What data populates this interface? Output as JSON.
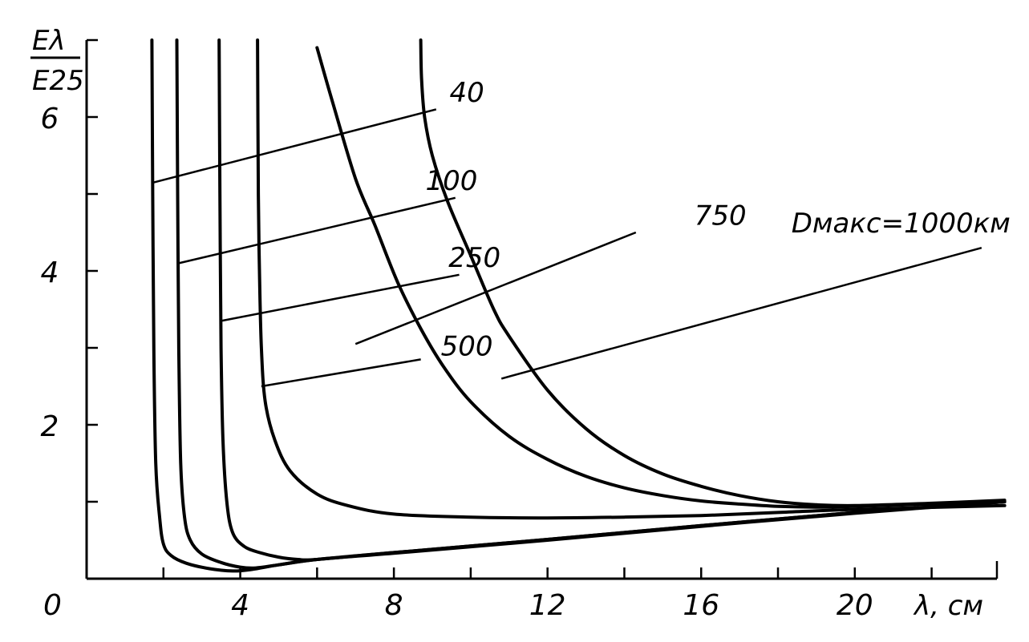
{
  "chart_data": {
    "type": "line",
    "title": "",
    "xlabel": "λ, см",
    "ylabel": {
      "numerator": "Eλ",
      "denominator": "E25"
    },
    "origin_label": "0",
    "xlim": [
      0,
      23.7
    ],
    "ylim": [
      0,
      7
    ],
    "x_ticks": [
      4,
      8,
      12,
      16,
      20
    ],
    "x_minor_ticks": [
      2,
      6,
      10,
      14,
      18,
      22
    ],
    "y_ticks": [
      2,
      4,
      6
    ],
    "y_minor_ticks": [
      1,
      3,
      5,
      7
    ],
    "grid": false,
    "legend": "none",
    "series": [
      {
        "name": "40",
        "label_text": "40",
        "points": [
          [
            1.7,
            7.0
          ],
          [
            1.72,
            5.0
          ],
          [
            1.75,
            3.0
          ],
          [
            1.8,
            1.5
          ],
          [
            1.9,
            0.8
          ],
          [
            2.0,
            0.45
          ],
          [
            2.2,
            0.3
          ],
          [
            2.6,
            0.2
          ],
          [
            3.2,
            0.13
          ],
          [
            3.8,
            0.1
          ],
          [
            4.3,
            0.12
          ],
          [
            5.0,
            0.18
          ],
          [
            6.0,
            0.25
          ],
          [
            8.0,
            0.33
          ],
          [
            12.0,
            0.5
          ],
          [
            16.0,
            0.68
          ],
          [
            20.0,
            0.85
          ],
          [
            23.9,
            1.0
          ]
        ]
      },
      {
        "name": "100",
        "label_text": "100",
        "points": [
          [
            2.35,
            7.0
          ],
          [
            2.37,
            5.0
          ],
          [
            2.4,
            3.0
          ],
          [
            2.45,
            1.5
          ],
          [
            2.55,
            0.8
          ],
          [
            2.7,
            0.5
          ],
          [
            3.0,
            0.32
          ],
          [
            3.5,
            0.21
          ],
          [
            4.0,
            0.15
          ],
          [
            4.4,
            0.14
          ],
          [
            5.0,
            0.18
          ],
          [
            6.0,
            0.25
          ],
          [
            8.0,
            0.34
          ],
          [
            12.0,
            0.51
          ],
          [
            16.0,
            0.69
          ],
          [
            20.0,
            0.86
          ],
          [
            23.9,
            1.0
          ]
        ]
      },
      {
        "name": "250",
        "label_text": "250",
        "points": [
          [
            3.45,
            7.0
          ],
          [
            3.47,
            5.0
          ],
          [
            3.5,
            3.0
          ],
          [
            3.55,
            1.8
          ],
          [
            3.65,
            1.0
          ],
          [
            3.8,
            0.6
          ],
          [
            4.1,
            0.42
          ],
          [
            4.5,
            0.34
          ],
          [
            5.0,
            0.28
          ],
          [
            5.5,
            0.25
          ],
          [
            6.0,
            0.25
          ],
          [
            8.0,
            0.34
          ],
          [
            12.0,
            0.51
          ],
          [
            16.0,
            0.69
          ],
          [
            20.0,
            0.86
          ],
          [
            23.9,
            1.0
          ]
        ]
      },
      {
        "name": "500",
        "label_text": "500",
        "points": [
          [
            4.45,
            7.0
          ],
          [
            4.47,
            5.0
          ],
          [
            4.5,
            4.0
          ],
          [
            4.55,
            3.0
          ],
          [
            4.65,
            2.3
          ],
          [
            4.9,
            1.8
          ],
          [
            5.3,
            1.4
          ],
          [
            6.0,
            1.1
          ],
          [
            6.8,
            0.95
          ],
          [
            8.0,
            0.84
          ],
          [
            10.0,
            0.8
          ],
          [
            12.0,
            0.79
          ],
          [
            14.0,
            0.8
          ],
          [
            16.0,
            0.82
          ],
          [
            18.0,
            0.86
          ],
          [
            20.0,
            0.9
          ],
          [
            23.9,
            0.95
          ]
        ]
      },
      {
        "name": "750",
        "label_text": "750",
        "points": [
          [
            6.0,
            6.9
          ],
          [
            6.4,
            6.2
          ],
          [
            7.0,
            5.2
          ],
          [
            7.5,
            4.6
          ],
          [
            8.1,
            3.85
          ],
          [
            8.7,
            3.25
          ],
          [
            9.3,
            2.75
          ],
          [
            10.0,
            2.3
          ],
          [
            11.0,
            1.85
          ],
          [
            12.0,
            1.55
          ],
          [
            13.0,
            1.33
          ],
          [
            14.0,
            1.18
          ],
          [
            15.0,
            1.08
          ],
          [
            16.0,
            1.01
          ],
          [
            17.0,
            0.97
          ],
          [
            18.0,
            0.94
          ],
          [
            19.0,
            0.93
          ],
          [
            20.0,
            0.94
          ],
          [
            22.0,
            0.97
          ],
          [
            23.9,
            1.0
          ]
        ]
      },
      {
        "name": "1000",
        "label_text": "Dмакс=1000км",
        "points": [
          [
            8.7,
            7.0
          ],
          [
            8.72,
            6.5
          ],
          [
            8.8,
            6.0
          ],
          [
            9.0,
            5.5
          ],
          [
            9.4,
            4.9
          ],
          [
            10.0,
            4.2
          ],
          [
            10.6,
            3.5
          ],
          [
            11.0,
            3.15
          ],
          [
            12.0,
            2.45
          ],
          [
            13.0,
            1.95
          ],
          [
            14.0,
            1.6
          ],
          [
            15.0,
            1.36
          ],
          [
            16.0,
            1.2
          ],
          [
            17.0,
            1.08
          ],
          [
            18.0,
            1.0
          ],
          [
            19.0,
            0.96
          ],
          [
            20.0,
            0.95
          ],
          [
            22.0,
            0.98
          ],
          [
            23.9,
            1.02
          ]
        ]
      }
    ],
    "leader_lines": [
      {
        "from": [
          1.75,
          5.15
        ],
        "to": [
          9.1,
          6.1
        ]
      },
      {
        "from": [
          2.4,
          4.1
        ],
        "to": [
          9.6,
          4.95
        ]
      },
      {
        "from": [
          3.5,
          3.35
        ],
        "to": [
          9.7,
          3.95
        ]
      },
      {
        "from": [
          4.55,
          2.5
        ],
        "to": [
          8.7,
          2.85
        ]
      },
      {
        "from": [
          7.0,
          3.05
        ],
        "to": [
          14.3,
          4.5
        ]
      },
      {
        "from": [
          10.8,
          2.6
        ],
        "to": [
          23.3,
          4.3
        ]
      }
    ],
    "label_anchors": [
      {
        "text": "40",
        "at": [
          9.9,
          6.2
        ]
      },
      {
        "text": "100",
        "at": [
          9.5,
          5.05
        ]
      },
      {
        "text": "250",
        "at": [
          10.1,
          4.05
        ]
      },
      {
        "text": "500",
        "at": [
          9.9,
          2.9
        ]
      },
      {
        "text": "750",
        "at": [
          16.5,
          4.6
        ]
      },
      {
        "text": "Dмакс=1000км",
        "at": [
          21.2,
          4.5
        ]
      }
    ]
  }
}
